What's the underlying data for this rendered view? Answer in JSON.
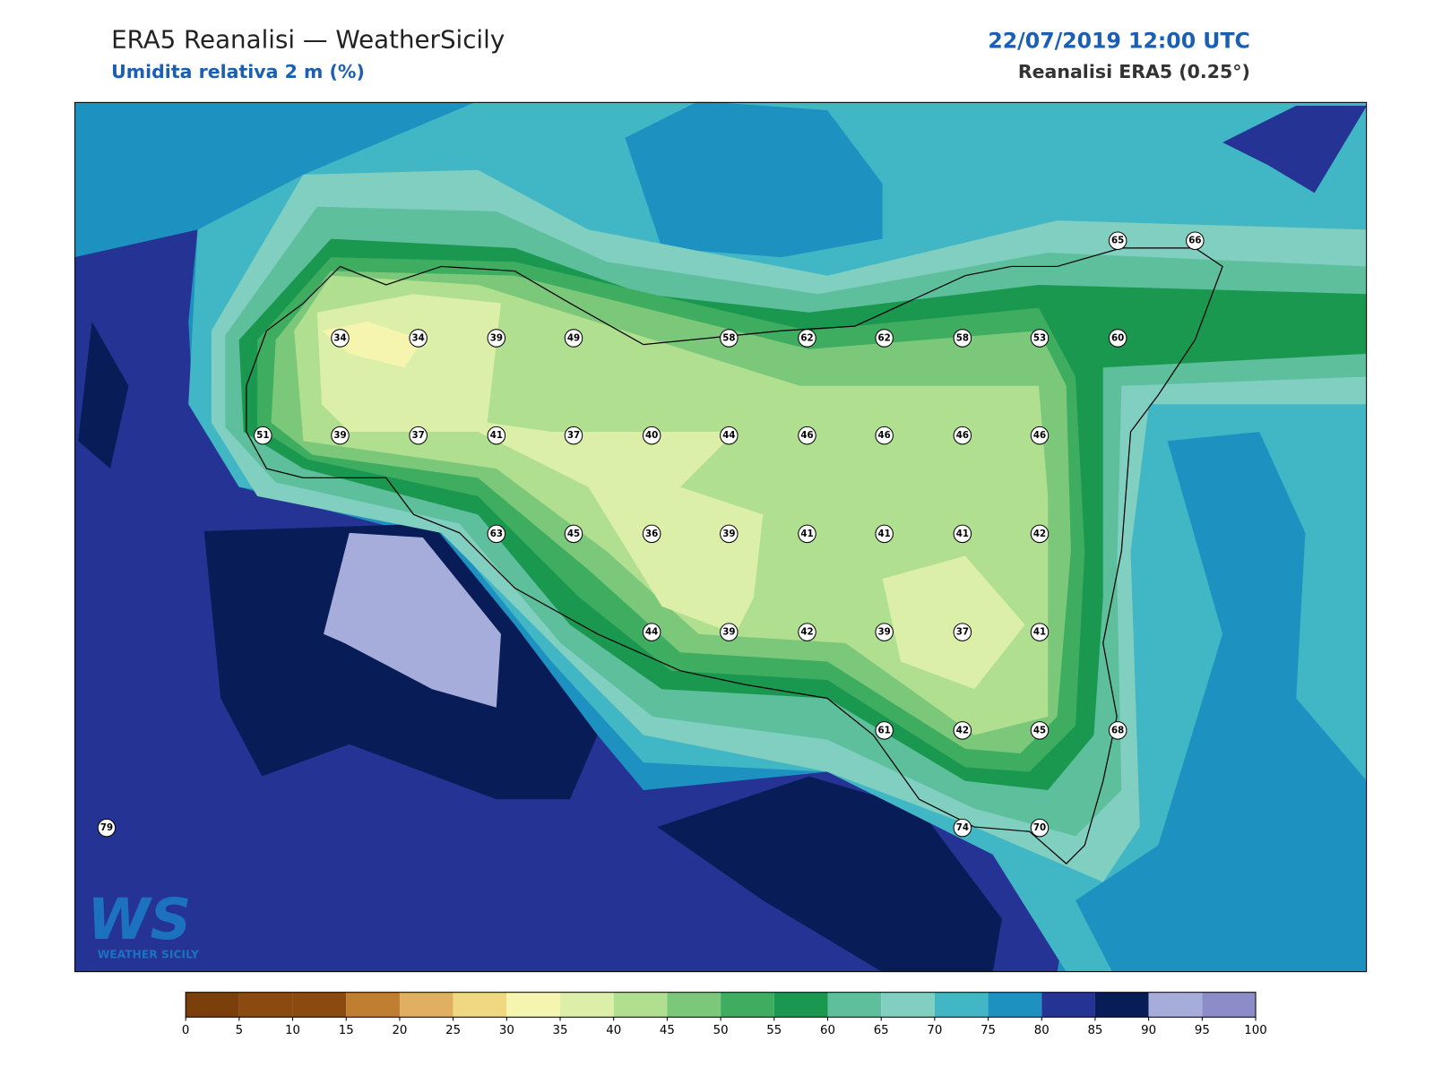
{
  "header": {
    "title": "ERA5 Reanalisi — WeatherSicily",
    "subtitle": "Umidita relativa 2 m (%)",
    "datetime": "22/07/2019 12:00 UTC",
    "source": "Reanalisi ERA5 (0.25°)"
  },
  "stations": [
    65,
    66,
    34,
    34,
    39,
    49,
    58,
    62,
    62,
    58,
    53,
    60,
    51,
    39,
    37,
    41,
    37,
    40,
    44,
    46,
    46,
    46,
    46,
    63,
    45,
    36,
    39,
    41,
    41,
    41,
    42,
    44,
    39,
    42,
    39,
    37,
    41,
    61,
    42,
    45,
    68,
    79,
    74,
    70
  ],
  "colorbar": {
    "ticks": [
      0,
      5,
      10,
      15,
      20,
      25,
      30,
      35,
      40,
      45,
      50,
      55,
      60,
      65,
      70,
      75,
      80,
      85,
      90,
      95,
      100
    ],
    "colors": [
      "#7a3f0a",
      "#8b4a10",
      "#8b4a10",
      "#c07f30",
      "#e0b060",
      "#f0d880",
      "#f5f5b0",
      "#dcefa8",
      "#b0df90",
      "#7cc87a",
      "#3fad60",
      "#1a9850",
      "#5dbf9c",
      "#80cfc0",
      "#41b6c4",
      "#1d91c0",
      "#253494",
      "#081d58",
      "#a6addb",
      "#8c8cc8"
    ]
  },
  "logo": {
    "mark": "WS",
    "text": "WEATHER SICILY"
  }
}
